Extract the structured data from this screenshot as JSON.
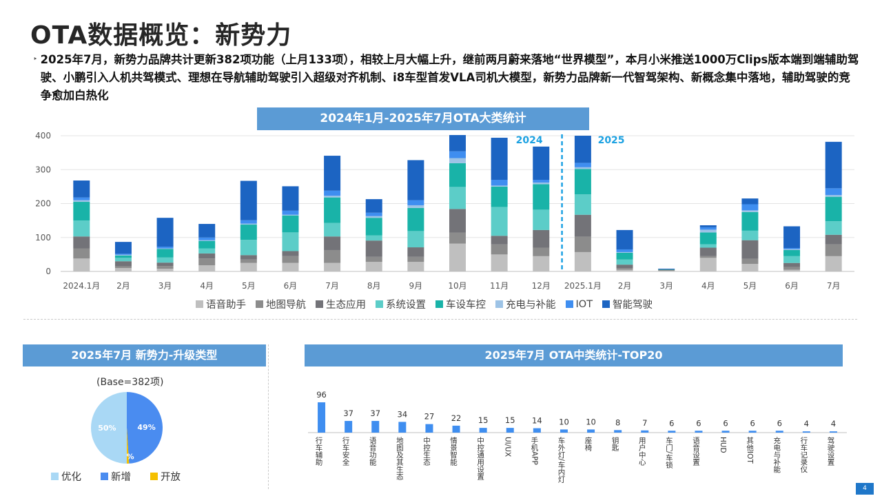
{
  "page": {
    "title": "OTA数据概览：新势力",
    "bullet": "‣",
    "summary": "2025年7月，新势力品牌共计更新382项功能（上月133项），相较上月大幅上升，继前两月蔚来落地“世界模型”，本月小米推送1000万Clips版本端到端辅助驾驶、小鹏引入人机共驾模式、理想在导航辅助驾驶引入超级对齐机制、i8车型首发VLA司机大模型，新势力品牌新一代智驾架构、新概念集中落地，辅助驾驶的竞争愈加白热化",
    "page_number": "4"
  },
  "colors": {
    "语音助手": "#bfbfbf",
    "地图导航": "#8c8c8c",
    "生态应用": "#737378",
    "系统设置": "#5ccdc8",
    "车设车控": "#19b3a8",
    "充电与补能": "#9dc3e6",
    "IOT": "#3f8ef0",
    "智能驾驶": "#1c64c2",
    "year_marker": "#1ba1e2",
    "banner": "#5b9bd5",
    "pie_optimize": "#a9d8f5",
    "pie_new": "#4a8cf0",
    "pie_open": "#f5c000",
    "bar2": "#3f8ef0"
  },
  "chart_data": [
    {
      "type": "bar",
      "stacked": true,
      "title": "2024年1月-2025年7月OTA大类统计",
      "categories": [
        "2024.1月",
        "2月",
        "3月",
        "4月",
        "5月",
        "6月",
        "7月",
        "8月",
        "9月",
        "10月",
        "11月",
        "12月",
        "2025.1月",
        "2月",
        "3月",
        "4月",
        "5月",
        "6月",
        "7月"
      ],
      "ylim": [
        0,
        400
      ],
      "yticks": [
        0,
        100,
        200,
        300,
        400
      ],
      "grid": true,
      "legend_position": "bottom",
      "year_labels": [
        "2024",
        "2025"
      ],
      "series": [
        {
          "name": "语音助手",
          "values": [
            38,
            10,
            8,
            18,
            25,
            25,
            25,
            28,
            28,
            82,
            50,
            45,
            57,
            5,
            2,
            40,
            22,
            5,
            45
          ]
        },
        {
          "name": "地图导航",
          "values": [
            30,
            5,
            8,
            20,
            10,
            20,
            38,
            15,
            15,
            32,
            30,
            25,
            45,
            5,
            2,
            5,
            15,
            8,
            35
          ]
        },
        {
          "name": "生态应用",
          "values": [
            35,
            15,
            10,
            15,
            13,
            15,
            40,
            48,
            28,
            70,
            25,
            52,
            65,
            10,
            1,
            25,
            55,
            12,
            28
          ]
        },
        {
          "name": "系统设置",
          "values": [
            47,
            10,
            15,
            15,
            45,
            55,
            40,
            15,
            48,
            65,
            85,
            60,
            60,
            15,
            0,
            10,
            28,
            20,
            40
          ]
        },
        {
          "name": "车设车控",
          "values": [
            55,
            7,
            25,
            22,
            45,
            50,
            75,
            52,
            68,
            70,
            60,
            75,
            75,
            20,
            1,
            35,
            55,
            18,
            72
          ]
        },
        {
          "name": "充电与补能",
          "values": [
            5,
            2,
            2,
            2,
            3,
            2,
            5,
            5,
            8,
            15,
            3,
            5,
            5,
            2,
            0,
            8,
            5,
            3,
            5
          ]
        },
        {
          "name": "IOT",
          "values": [
            8,
            3,
            5,
            8,
            10,
            12,
            15,
            10,
            15,
            20,
            17,
            8,
            13,
            8,
            0,
            7,
            18,
            3,
            20
          ]
        },
        {
          "name": "智能驾驶",
          "values": [
            50,
            35,
            85,
            40,
            116,
            72,
            103,
            40,
            118,
            48,
            124,
            98,
            80,
            57,
            2,
            6,
            17,
            64,
            137
          ]
        }
      ]
    },
    {
      "type": "pie",
      "title": "2025年7月 新势力-升级类型",
      "note": "(Base=382项)",
      "labels": [
        "优化",
        "新增",
        "开放"
      ],
      "values": [
        50,
        49,
        1
      ],
      "value_labels": [
        "50%",
        "49%",
        "1%"
      ]
    },
    {
      "type": "bar",
      "title": "2025年7月 OTA中类统计-TOP20",
      "categories": [
        "行车辅助",
        "行车安全",
        "语音功能",
        "地图及其生态",
        "中控生态",
        "情景智能",
        "中控通用设置",
        "UI/UX",
        "手机APP",
        "车外灯/车内灯",
        "座椅",
        "钥匙",
        "用户中心",
        "车门/车锁",
        "语音设置",
        "HUD",
        "其他IOT",
        "充电与补能",
        "行车记录仪",
        "驾驶设置"
      ],
      "values": [
        96,
        37,
        37,
        34,
        27,
        22,
        15,
        15,
        14,
        10,
        10,
        8,
        7,
        6,
        6,
        6,
        6,
        6,
        4,
        4
      ],
      "data_labels": true
    }
  ]
}
